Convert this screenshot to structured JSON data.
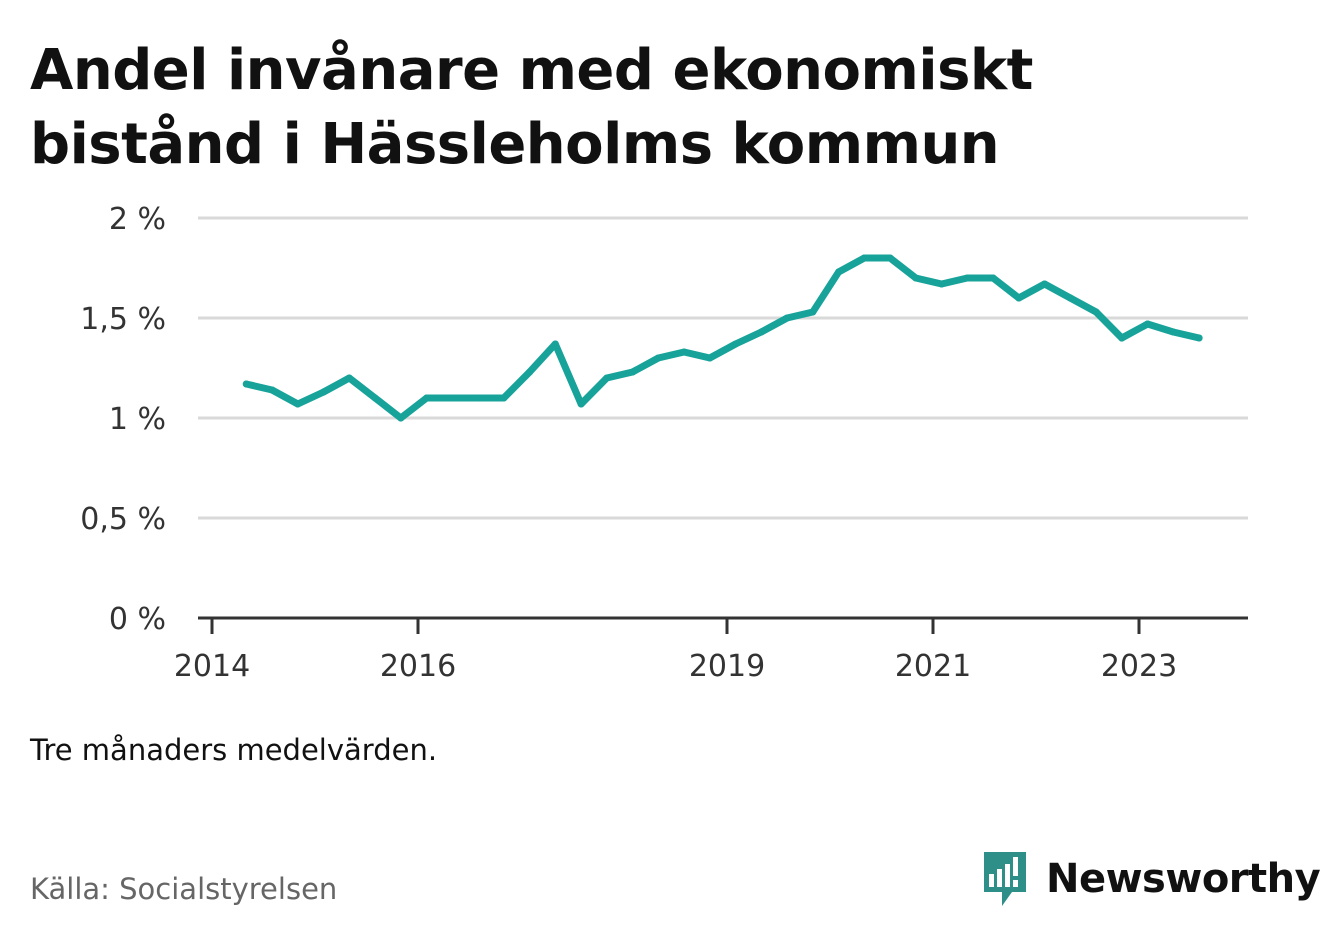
{
  "title_line1": "Andel invånare med ekonomiskt",
  "title_line2": "bistånd i Hässleholms kommun",
  "note": "Tre månaders medelvärden.",
  "source": "Källa: Socialstyrelsen",
  "brand": "Newsworthy",
  "colors": {
    "line": "#17a39a",
    "brand": "#2e8f89",
    "grid": "#d9d9d9",
    "axis": "#333333"
  },
  "chart_data": {
    "type": "line",
    "title": "Andel invånare med ekonomiskt bistånd i Hässleholms kommun",
    "xlabel": "",
    "ylabel": "",
    "ylim": [
      0,
      2
    ],
    "yticks": [
      0,
      0.5,
      1,
      1.5,
      2
    ],
    "ytick_labels": [
      "0 %",
      "0,5 %",
      "1 %",
      "1,5 %",
      "2 %"
    ],
    "xticks": [
      2014,
      2016,
      2019,
      2021,
      2023
    ],
    "xtick_labels": [
      "2014",
      "2016",
      "2019",
      "2021",
      "2023"
    ],
    "grid": true,
    "series": [
      {
        "values": [
          {
            "x": "2014-05",
            "y": 1.17
          },
          {
            "x": "2014-08",
            "y": 1.14
          },
          {
            "x": "2014-11",
            "y": 1.07
          },
          {
            "x": "2015-02",
            "y": 1.13
          },
          {
            "x": "2015-05",
            "y": 1.2
          },
          {
            "x": "2015-08",
            "y": 1.1
          },
          {
            "x": "2015-11",
            "y": 1.0
          },
          {
            "x": "2016-02",
            "y": 1.1
          },
          {
            "x": "2016-05",
            "y": 1.1
          },
          {
            "x": "2016-08",
            "y": 1.1
          },
          {
            "x": "2016-11",
            "y": 1.1
          },
          {
            "x": "2017-02",
            "y": 1.23
          },
          {
            "x": "2017-05",
            "y": 1.37
          },
          {
            "x": "2017-08",
            "y": 1.07
          },
          {
            "x": "2017-11",
            "y": 1.2
          },
          {
            "x": "2018-02",
            "y": 1.23
          },
          {
            "x": "2018-05",
            "y": 1.3
          },
          {
            "x": "2018-08",
            "y": 1.33
          },
          {
            "x": "2018-11",
            "y": 1.3
          },
          {
            "x": "2019-02",
            "y": 1.37
          },
          {
            "x": "2019-05",
            "y": 1.43
          },
          {
            "x": "2019-08",
            "y": 1.5
          },
          {
            "x": "2019-11",
            "y": 1.53
          },
          {
            "x": "2020-02",
            "y": 1.73
          },
          {
            "x": "2020-05",
            "y": 1.8
          },
          {
            "x": "2020-08",
            "y": 1.8
          },
          {
            "x": "2020-11",
            "y": 1.7
          },
          {
            "x": "2021-02",
            "y": 1.67
          },
          {
            "x": "2021-05",
            "y": 1.7
          },
          {
            "x": "2021-08",
            "y": 1.7
          },
          {
            "x": "2021-11",
            "y": 1.6
          },
          {
            "x": "2022-02",
            "y": 1.67
          },
          {
            "x": "2022-05",
            "y": 1.6
          },
          {
            "x": "2022-08",
            "y": 1.53
          },
          {
            "x": "2022-11",
            "y": 1.4
          },
          {
            "x": "2023-02",
            "y": 1.47
          },
          {
            "x": "2023-05",
            "y": 1.43
          },
          {
            "x": "2023-08",
            "y": 1.4
          }
        ]
      }
    ]
  }
}
